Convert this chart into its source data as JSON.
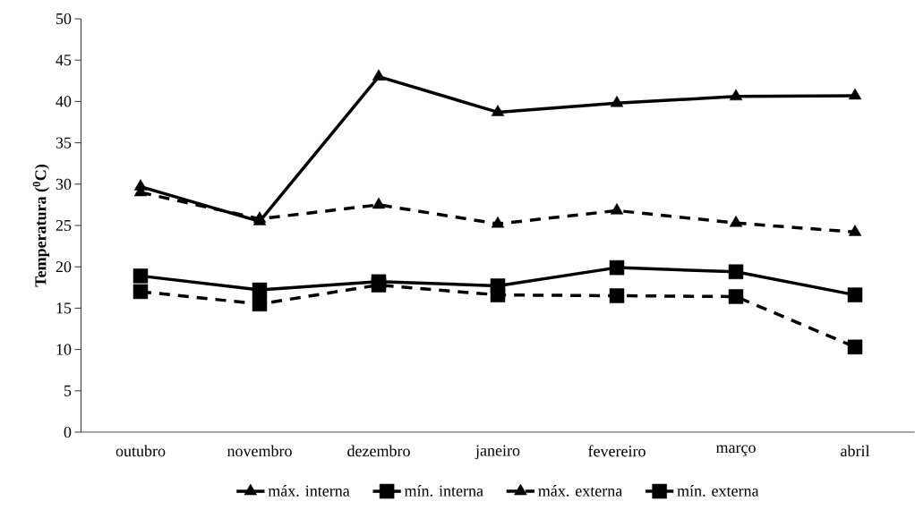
{
  "chart_data": {
    "type": "line",
    "ylabel": "Temperatura ($^{0}$C)",
    "categories": [
      "outubro",
      "novembro",
      "dezembro",
      "janeiro",
      "fevereiro",
      "março",
      "abril"
    ],
    "series": [
      {
        "name": "máx. interna",
        "color": "#000000",
        "marker": "triangle",
        "line_style": "solid",
        "values": [
          29.7,
          25.5,
          43.0,
          38.7,
          39.8,
          40.6,
          40.7
        ]
      },
      {
        "name": "mín. interna",
        "color": "#000000",
        "marker": "square",
        "line_style": "solid",
        "values": [
          18.9,
          17.2,
          18.2,
          17.7,
          19.9,
          19.4,
          16.6
        ]
      },
      {
        "name": "máx. externa",
        "color": "#000000",
        "marker": "triangle",
        "line_style": "dashed",
        "values": [
          29.0,
          25.8,
          27.5,
          25.2,
          26.8,
          25.3,
          24.2
        ]
      },
      {
        "name": "mín. externa",
        "color": "#000000",
        "marker": "square",
        "line_style": "dashed",
        "values": [
          17.0,
          15.5,
          17.8,
          16.6,
          16.5,
          16.4,
          10.3
        ]
      }
    ],
    "ylim": [
      0,
      50
    ],
    "yticks": [
      0,
      5,
      10,
      15,
      20,
      25,
      30,
      35,
      40,
      45,
      50
    ],
    "grid": false,
    "legend": "bottom"
  }
}
